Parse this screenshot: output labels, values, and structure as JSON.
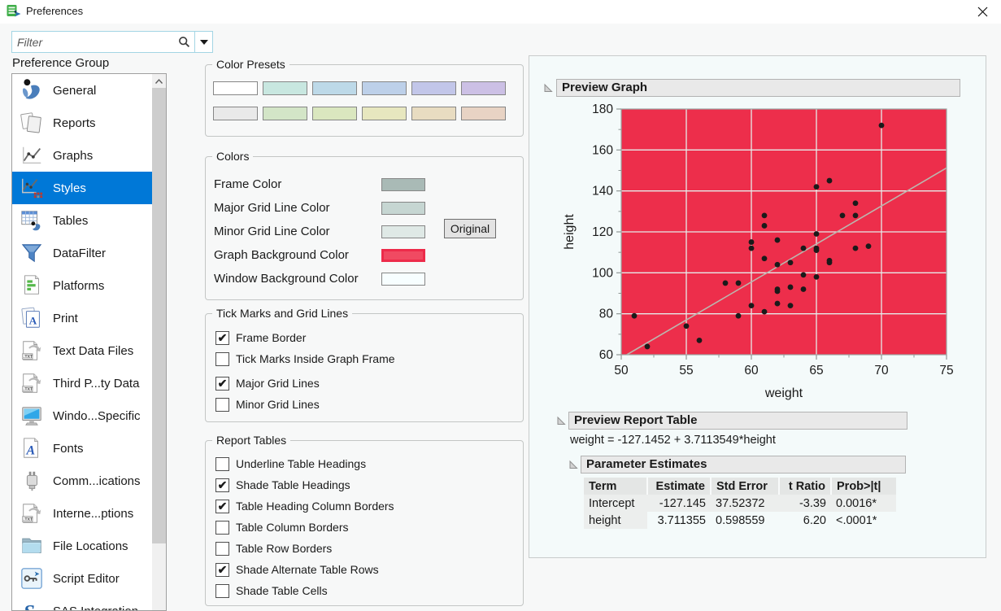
{
  "window": {
    "title": "Preferences"
  },
  "filter": {
    "placeholder": "Filter"
  },
  "sidebar": {
    "heading": "Preference Group",
    "items": [
      {
        "label": "General",
        "icon": "jmp-person-icon",
        "selected": false
      },
      {
        "label": "Reports",
        "icon": "report-pages-icon",
        "selected": false
      },
      {
        "label": "Graphs",
        "icon": "line-chart-icon",
        "selected": false
      },
      {
        "label": "Styles",
        "icon": "chart-styles-icon",
        "selected": true
      },
      {
        "label": "Tables",
        "icon": "table-icon",
        "selected": false
      },
      {
        "label": "DataFilter",
        "icon": "funnel-icon",
        "selected": false
      },
      {
        "label": "Platforms",
        "icon": "platform-doc-icon",
        "selected": false
      },
      {
        "label": "Print",
        "icon": "print-pages-icon",
        "selected": false
      },
      {
        "label": "Text Data Files",
        "icon": "txt-file-icon",
        "selected": false
      },
      {
        "label": "Third P...ty Data",
        "icon": "txt-file-icon",
        "selected": false
      },
      {
        "label": "Windo...Specific",
        "icon": "monitor-icon",
        "selected": false
      },
      {
        "label": "Fonts",
        "icon": "font-doc-icon",
        "selected": false
      },
      {
        "label": "Comm...ications",
        "icon": "usb-plug-icon",
        "selected": false
      },
      {
        "label": "Interne...ptions",
        "icon": "txt-file-icon",
        "selected": false
      },
      {
        "label": "File Locations",
        "icon": "folder-icon",
        "selected": false
      },
      {
        "label": "Script Editor",
        "icon": "script-editor-icon",
        "selected": false
      },
      {
        "label": "SAS Integration",
        "icon": "sas-icon",
        "selected": false
      }
    ]
  },
  "color_presets": {
    "title": "Color Presets",
    "row1": [
      "#ffffff",
      "#c8e7e0",
      "#bdd9e8",
      "#bdd0e9",
      "#c2c6e9",
      "#ccc0e5"
    ],
    "row2": [
      "#e9e9e9",
      "#d3e5c7",
      "#dae7bf",
      "#e7e7bf",
      "#e8dcc1",
      "#e8d3c4"
    ]
  },
  "colors": {
    "title": "Colors",
    "original_button": "Original",
    "rows": [
      {
        "label": "Frame Color",
        "value": "#a9bab6"
      },
      {
        "label": "Major Grid Line Color",
        "value": "#c6d6d2"
      },
      {
        "label": "Minor Grid Line Color",
        "value": "#dfe9e6"
      },
      {
        "label": "Graph Background Color",
        "value": "#f04a62",
        "border": "#ed2b4a"
      },
      {
        "label": "Window Background Color",
        "value": "#f7feff"
      }
    ]
  },
  "tick_marks": {
    "title": "Tick Marks and Grid Lines",
    "options": [
      {
        "label": "Frame Border",
        "checked": true
      },
      {
        "label": "Tick Marks Inside Graph Frame",
        "checked": false
      },
      {
        "label": "Major Grid Lines",
        "checked": true
      },
      {
        "label": "Minor Grid Lines",
        "checked": false
      }
    ]
  },
  "report_tables": {
    "title": "Report Tables",
    "options": [
      {
        "label": "Underline Table Headings",
        "checked": false
      },
      {
        "label": "Shade Table Headings",
        "checked": true
      },
      {
        "label": "Table Heading Column Borders",
        "checked": true
      },
      {
        "label": "Table Column Borders",
        "checked": false
      },
      {
        "label": "Table Row Borders",
        "checked": false
      },
      {
        "label": "Shade Alternate Table Rows",
        "checked": true
      },
      {
        "label": "Shade Table Cells",
        "checked": false
      }
    ]
  },
  "preview": {
    "graph_title": "Preview Graph",
    "report_title": "Preview Report Table",
    "equation": "weight = -127.1452 + 3.7113549*height",
    "parameter_estimates": {
      "title": "Parameter Estimates",
      "columns": [
        "Term",
        "Estimate",
        "Std Error",
        "t Ratio",
        "Prob>|t|"
      ],
      "rows": [
        [
          "Intercept",
          "-127.145",
          "37.52372",
          "-3.39",
          "0.0016*"
        ],
        [
          "height",
          "3.711355",
          "0.598559",
          "6.20",
          "<.0001*"
        ]
      ]
    }
  },
  "chart_data": {
    "type": "scatter",
    "title": "Preview Graph",
    "xlabel": "weight",
    "ylabel": "height",
    "xlim": [
      50,
      75
    ],
    "ylim": [
      60,
      180
    ],
    "xticks": [
      50,
      55,
      60,
      65,
      70,
      75
    ],
    "yticks": [
      60,
      80,
      100,
      120,
      140,
      160,
      180
    ],
    "minor_x_step": 2.5,
    "minor_y_step": 10,
    "grid": true,
    "legend": "none",
    "background_color": "#ed2e4b",
    "grid_color": "#e6ebea",
    "frame_color": "#9ba6a4",
    "point_color": "#1a1a1a",
    "fit_line": {
      "intercept": -127.1452,
      "slope": 3.7113549,
      "color": "#bcb6ae"
    },
    "points": [
      [
        51,
        79
      ],
      [
        52,
        64
      ],
      [
        55,
        74
      ],
      [
        56,
        67
      ],
      [
        58,
        95
      ],
      [
        59,
        95
      ],
      [
        59,
        79
      ],
      [
        60,
        115
      ],
      [
        60,
        112
      ],
      [
        60,
        84
      ],
      [
        61,
        128
      ],
      [
        61,
        123
      ],
      [
        61,
        107
      ],
      [
        61,
        81
      ],
      [
        62,
        116
      ],
      [
        62,
        104
      ],
      [
        62,
        92
      ],
      [
        62,
        91
      ],
      [
        62,
        85
      ],
      [
        63,
        105
      ],
      [
        63,
        93
      ],
      [
        63,
        84
      ],
      [
        64,
        112
      ],
      [
        64,
        99
      ],
      [
        64,
        92
      ],
      [
        65,
        142
      ],
      [
        65,
        119
      ],
      [
        65,
        112
      ],
      [
        65,
        111
      ],
      [
        65,
        98
      ],
      [
        66,
        145
      ],
      [
        66,
        106
      ],
      [
        66,
        105
      ],
      [
        67,
        128
      ],
      [
        68,
        134
      ],
      [
        68,
        128
      ],
      [
        68,
        112
      ],
      [
        69,
        113
      ],
      [
        70,
        172
      ]
    ]
  }
}
